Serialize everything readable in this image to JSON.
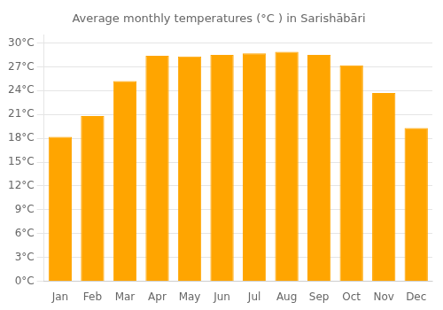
{
  "chart_data": {
    "type": "bar",
    "title": "Average monthly temperatures (°C ) in Sarishābāri",
    "categories": [
      "Jan",
      "Feb",
      "Mar",
      "Apr",
      "May",
      "Jun",
      "Jul",
      "Aug",
      "Sep",
      "Oct",
      "Nov",
      "Dec"
    ],
    "values": [
      18.2,
      20.8,
      25.2,
      28.4,
      28.3,
      28.5,
      28.7,
      28.9,
      28.5,
      27.2,
      23.7,
      19.3
    ],
    "color": "#FFA500",
    "ylim": [
      0,
      31
    ],
    "yticks": [
      {
        "value": 0,
        "label": "0°C"
      },
      {
        "value": 3,
        "label": "3°C"
      },
      {
        "value": 6,
        "label": "6°C"
      },
      {
        "value": 9,
        "label": "9°C"
      },
      {
        "value": 12,
        "label": "12°C"
      },
      {
        "value": 15,
        "label": "15°C"
      },
      {
        "value": 18,
        "label": "18°C"
      },
      {
        "value": 21,
        "label": "21°C"
      },
      {
        "value": 24,
        "label": "24°C"
      },
      {
        "value": 27,
        "label": "27°C"
      },
      {
        "value": 30,
        "label": "30°C"
      }
    ],
    "grid": true
  }
}
